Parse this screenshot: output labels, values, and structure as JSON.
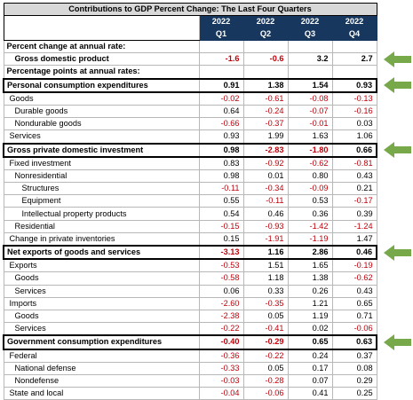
{
  "title": "Contributions to GDP Percent Change: The Last Four Quarters",
  "quarters": [
    {
      "year": "2022",
      "q": "Q1"
    },
    {
      "year": "2022",
      "q": "Q2"
    },
    {
      "year": "2022",
      "q": "Q3"
    },
    {
      "year": "2022",
      "q": "Q4"
    }
  ],
  "rows": [
    {
      "label": "Percent change at annual rate:",
      "type": "heading",
      "indent": 0,
      "values": []
    },
    {
      "label": "Gross domestic product",
      "type": "bold",
      "indent": 2,
      "values": [
        "-1.6",
        "-0.6",
        "3.2",
        "2.7"
      ]
    },
    {
      "label": "Percentage points at annual rates:",
      "type": "heading",
      "indent": 0,
      "values": []
    },
    {
      "label": "Personal consumption expenditures",
      "type": "section",
      "indent": 0,
      "values": [
        "0.91",
        "1.38",
        "1.54",
        "0.93"
      ]
    },
    {
      "label": "Goods",
      "type": "normal",
      "indent": 1,
      "values": [
        "-0.02",
        "-0.61",
        "-0.08",
        "-0.13"
      ]
    },
    {
      "label": "Durable goods",
      "type": "normal",
      "indent": 2,
      "values": [
        "0.64",
        "-0.24",
        "-0.07",
        "-0.16"
      ]
    },
    {
      "label": "Nondurable goods",
      "type": "normal",
      "indent": 2,
      "values": [
        "-0.66",
        "-0.37",
        "-0.01",
        "0.03"
      ]
    },
    {
      "label": "Services",
      "type": "normal",
      "indent": 1,
      "values": [
        "0.93",
        "1.99",
        "1.63",
        "1.06"
      ]
    },
    {
      "label": "Gross private domestic investment",
      "type": "section",
      "indent": 0,
      "values": [
        "0.98",
        "-2.83",
        "-1.80",
        "0.66"
      ]
    },
    {
      "label": "Fixed investment",
      "type": "normal",
      "indent": 1,
      "values": [
        "0.83",
        "-0.92",
        "-0.62",
        "-0.81"
      ]
    },
    {
      "label": "Nonresidential",
      "type": "normal",
      "indent": 2,
      "values": [
        "0.98",
        "0.01",
        "0.80",
        "0.43"
      ]
    },
    {
      "label": "Structures",
      "type": "normal",
      "indent": 3,
      "values": [
        "-0.11",
        "-0.34",
        "-0.09",
        "0.21"
      ]
    },
    {
      "label": "Equipment",
      "type": "normal",
      "indent": 3,
      "values": [
        "0.55",
        "-0.11",
        "0.53",
        "-0.17"
      ]
    },
    {
      "label": "Intellectual property products",
      "type": "normal",
      "indent": 3,
      "values": [
        "0.54",
        "0.46",
        "0.36",
        "0.39"
      ]
    },
    {
      "label": "Residential",
      "type": "normal",
      "indent": 2,
      "values": [
        "-0.15",
        "-0.93",
        "-1.42",
        "-1.24"
      ]
    },
    {
      "label": "Change in private inventories",
      "type": "normal",
      "indent": 1,
      "values": [
        "0.15",
        "-1.91",
        "-1.19",
        "1.47"
      ]
    },
    {
      "label": "Net exports of goods and services",
      "type": "section",
      "indent": 0,
      "values": [
        "-3.13",
        "1.16",
        "2.86",
        "0.46"
      ]
    },
    {
      "label": "Exports",
      "type": "normal",
      "indent": 1,
      "values": [
        "-0.53",
        "1.51",
        "1.65",
        "-0.19"
      ]
    },
    {
      "label": "Goods",
      "type": "normal",
      "indent": 2,
      "values": [
        "-0.58",
        "1.18",
        "1.38",
        "-0.62"
      ]
    },
    {
      "label": "Services",
      "type": "normal",
      "indent": 2,
      "values": [
        "0.06",
        "0.33",
        "0.26",
        "0.43"
      ]
    },
    {
      "label": "Imports",
      "type": "normal",
      "indent": 1,
      "values": [
        "-2.60",
        "-0.35",
        "1.21",
        "0.65"
      ]
    },
    {
      "label": "Goods",
      "type": "normal",
      "indent": 2,
      "values": [
        "-2.38",
        "0.05",
        "1.19",
        "0.71"
      ]
    },
    {
      "label": "Services",
      "type": "normal",
      "indent": 2,
      "values": [
        "-0.22",
        "-0.41",
        "0.02",
        "-0.06"
      ]
    },
    {
      "label": "Government consumption expenditures",
      "type": "section",
      "indent": 0,
      "values": [
        "-0.40",
        "-0.29",
        "0.65",
        "0.63"
      ]
    },
    {
      "label": "Federal",
      "type": "normal",
      "indent": 1,
      "values": [
        "-0.36",
        "-0.22",
        "0.24",
        "0.37"
      ]
    },
    {
      "label": "National defense",
      "type": "normal",
      "indent": 2,
      "values": [
        "-0.33",
        "0.05",
        "0.17",
        "0.08"
      ]
    },
    {
      "label": "Nondefense",
      "type": "normal",
      "indent": 2,
      "values": [
        "-0.03",
        "-0.28",
        "0.07",
        "0.29"
      ]
    },
    {
      "label": "State and local",
      "type": "normal",
      "indent": 1,
      "values": [
        "-0.04",
        "-0.06",
        "0.41",
        "0.25"
      ]
    }
  ],
  "arrows": {
    "color": "#77a94a",
    "rows": [
      "Gross domestic product",
      "Personal consumption expenditures",
      "Gross private domestic investment",
      "Net exports of goods and services",
      "Government consumption expenditures"
    ],
    "icon": "right-pointing-arrow-icon"
  }
}
